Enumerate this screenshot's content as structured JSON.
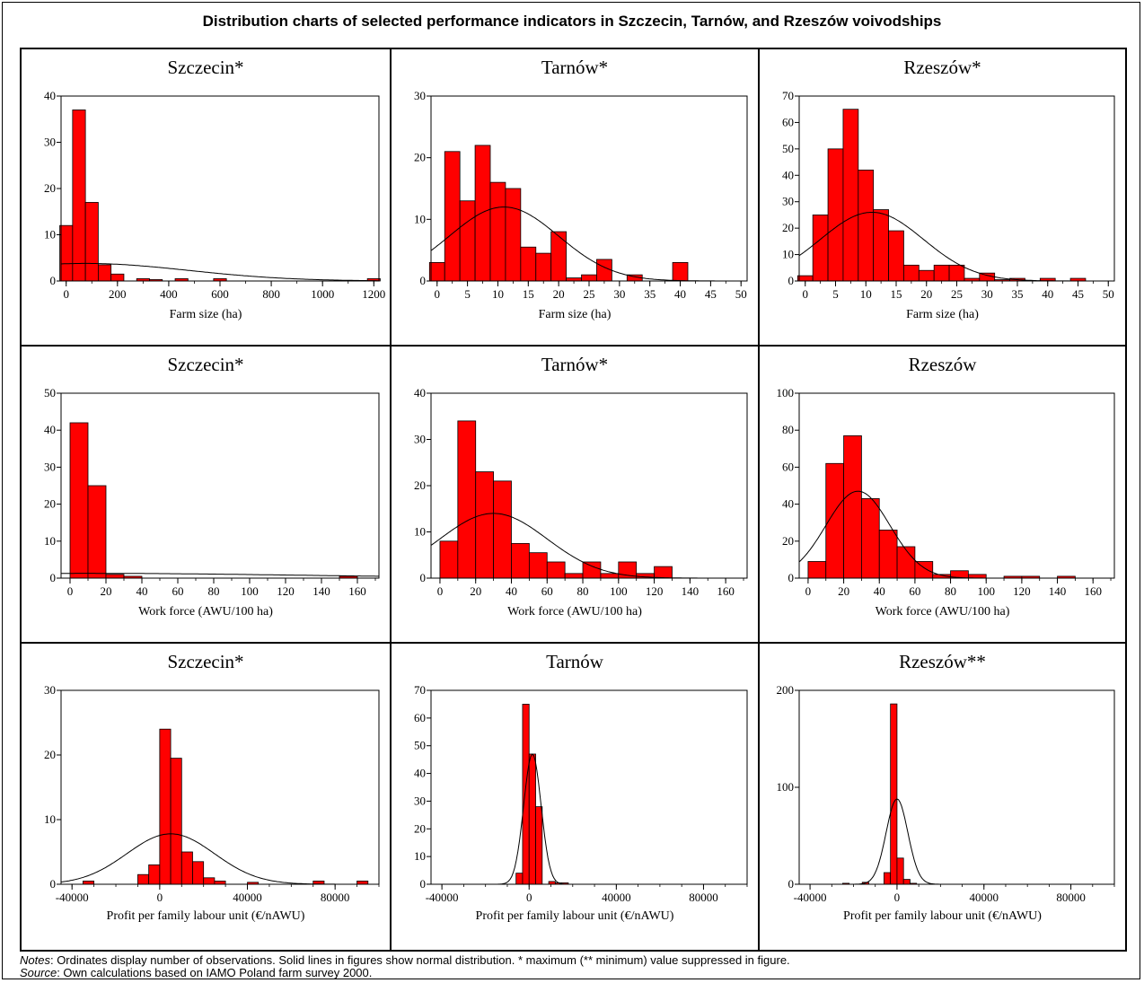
{
  "figure": {
    "title": "Distribution charts of selected performance indicators in Szczecin, Tarnów, and Rzeszów voivodships",
    "notes_label": "Notes",
    "notes_text": ": Ordinates display number of observations. Solid lines in figures show normal distribution. * maximum (** minimum) value suppressed in figure.",
    "source_label": "Source",
    "source_text": ": Own calculations based on IAMO Poland farm survey 2000."
  },
  "colors": {
    "bar_fill": "#ff0000",
    "bar_stroke": "#000000",
    "curve": "#000000"
  },
  "chart_data": [
    {
      "type": "bar",
      "title": "Szczecin*",
      "xlabel": "Farm size (ha)",
      "ylabel": "",
      "xlim": [
        -20,
        1220
      ],
      "ylim": [
        0,
        40
      ],
      "xticks": [
        0,
        200,
        400,
        600,
        800,
        1000,
        1200
      ],
      "yticks": [
        0,
        10,
        20,
        30,
        40
      ],
      "bin_width": 50,
      "bins": [
        [
          -25,
          12
        ],
        [
          25,
          37
        ],
        [
          75,
          17
        ],
        [
          125,
          3.5
        ],
        [
          175,
          1.5
        ],
        [
          275,
          0.5
        ],
        [
          325,
          0.3
        ],
        [
          425,
          0.5
        ],
        [
          575,
          0.5
        ],
        [
          1175,
          0.5
        ]
      ],
      "normal_curve": {
        "mean": 75,
        "sd": 400,
        "peak": 3.8
      }
    },
    {
      "type": "bar",
      "title": "Tarnów*",
      "xlabel": "Farm size (ha)",
      "ylabel": "",
      "xlim": [
        -1,
        51
      ],
      "ylim": [
        0,
        30
      ],
      "xticks": [
        0,
        5,
        10,
        15,
        20,
        25,
        30,
        35,
        40,
        45,
        50
      ],
      "yticks": [
        0,
        10,
        20,
        30
      ],
      "bin_width": 2.5,
      "bins": [
        [
          -1.25,
          3
        ],
        [
          1.25,
          21
        ],
        [
          3.75,
          13
        ],
        [
          6.25,
          22
        ],
        [
          8.75,
          16
        ],
        [
          11.25,
          15
        ],
        [
          13.75,
          5.5
        ],
        [
          16.25,
          4.5
        ],
        [
          18.75,
          8
        ],
        [
          21.25,
          0.5
        ],
        [
          23.75,
          1
        ],
        [
          26.25,
          3.5
        ],
        [
          31.25,
          1
        ],
        [
          38.75,
          3
        ]
      ],
      "normal_curve": {
        "mean": 11,
        "sd": 9,
        "peak": 12
      }
    },
    {
      "type": "bar",
      "title": "Rzeszów*",
      "xlabel": "Farm size (ha)",
      "ylabel": "",
      "xlim": [
        -1,
        51
      ],
      "ylim": [
        0,
        70
      ],
      "xticks": [
        0,
        5,
        10,
        15,
        20,
        25,
        30,
        35,
        40,
        45,
        50
      ],
      "yticks": [
        0,
        10,
        20,
        30,
        40,
        50,
        60,
        70
      ],
      "bin_width": 2.5,
      "bins": [
        [
          -1.25,
          2
        ],
        [
          1.25,
          25
        ],
        [
          3.75,
          50
        ],
        [
          6.25,
          65
        ],
        [
          8.75,
          42
        ],
        [
          11.25,
          27
        ],
        [
          13.75,
          19
        ],
        [
          16.25,
          6
        ],
        [
          18.75,
          4
        ],
        [
          21.25,
          6
        ],
        [
          23.75,
          6
        ],
        [
          26.25,
          1
        ],
        [
          28.75,
          3
        ],
        [
          31.25,
          0.5
        ],
        [
          33.75,
          1
        ],
        [
          38.75,
          1
        ],
        [
          43.75,
          1
        ]
      ],
      "normal_curve": {
        "mean": 11,
        "sd": 8.5,
        "peak": 26
      }
    },
    {
      "type": "bar",
      "title": "Szczecin*",
      "xlabel": "Work force (AWU/100 ha)",
      "ylabel": "",
      "xlim": [
        -5,
        172
      ],
      "ylim": [
        0,
        50
      ],
      "xticks": [
        0,
        20,
        40,
        60,
        80,
        100,
        120,
        140,
        160
      ],
      "yticks": [
        0,
        10,
        20,
        30,
        40,
        50
      ],
      "bin_width": 10,
      "bins": [
        [
          0,
          42
        ],
        [
          10,
          25
        ],
        [
          20,
          1
        ],
        [
          30,
          0.5
        ],
        [
          150,
          0.5
        ]
      ],
      "normal_curve": {
        "mean": 8,
        "sd": 120,
        "peak": 1.3
      }
    },
    {
      "type": "bar",
      "title": "Tarnów*",
      "xlabel": "Work force (AWU/100 ha)",
      "ylabel": "",
      "xlim": [
        -5,
        172
      ],
      "ylim": [
        0,
        40
      ],
      "xticks": [
        0,
        20,
        40,
        60,
        80,
        100,
        120,
        140,
        160
      ],
      "yticks": [
        0,
        10,
        20,
        30,
        40
      ],
      "bin_width": 10,
      "bins": [
        [
          0,
          8
        ],
        [
          10,
          34
        ],
        [
          20,
          23
        ],
        [
          30,
          21
        ],
        [
          40,
          7.5
        ],
        [
          50,
          5.5
        ],
        [
          60,
          3.5
        ],
        [
          70,
          1
        ],
        [
          80,
          3.5
        ],
        [
          90,
          1
        ],
        [
          100,
          3.5
        ],
        [
          110,
          1
        ],
        [
          120,
          2.5
        ]
      ],
      "normal_curve": {
        "mean": 30,
        "sd": 30,
        "peak": 14
      }
    },
    {
      "type": "bar",
      "title": "Rzeszów",
      "xlabel": "Work force (AWU/100 ha)",
      "ylabel": "",
      "xlim": [
        -5,
        172
      ],
      "ylim": [
        0,
        100
      ],
      "xticks": [
        0,
        20,
        40,
        60,
        80,
        100,
        120,
        140,
        160
      ],
      "yticks": [
        0,
        20,
        40,
        60,
        80,
        100
      ],
      "bin_width": 10,
      "bins": [
        [
          0,
          9
        ],
        [
          10,
          62
        ],
        [
          20,
          77
        ],
        [
          30,
          43
        ],
        [
          40,
          26
        ],
        [
          50,
          17
        ],
        [
          60,
          9
        ],
        [
          70,
          2
        ],
        [
          80,
          4
        ],
        [
          90,
          2
        ],
        [
          110,
          1
        ],
        [
          120,
          1
        ],
        [
          140,
          1
        ]
      ],
      "normal_curve": {
        "mean": 28,
        "sd": 18,
        "peak": 47
      }
    },
    {
      "type": "bar",
      "title": "Szczecin*",
      "xlabel": "Profit per family labour unit (€/nAWU)",
      "ylabel": "",
      "xlim": [
        -45000,
        100000
      ],
      "ylim": [
        0,
        30
      ],
      "xticks": [
        -40000,
        0,
        40000,
        80000
      ],
      "yticks": [
        0,
        10,
        20,
        30
      ],
      "bin_width": 5000,
      "bins": [
        [
          -35000,
          0.5
        ],
        [
          -10000,
          1.5
        ],
        [
          -5000,
          3
        ],
        [
          0,
          24
        ],
        [
          5000,
          19.5
        ],
        [
          10000,
          5
        ],
        [
          15000,
          3.5
        ],
        [
          20000,
          1
        ],
        [
          25000,
          0.5
        ],
        [
          40000,
          0.3
        ],
        [
          70000,
          0.5
        ],
        [
          90000,
          0.5
        ]
      ],
      "normal_curve": {
        "mean": 5000,
        "sd": 20000,
        "peak": 7.8
      }
    },
    {
      "type": "bar",
      "title": "Tarnów",
      "xlabel": "Profit per family labour unit (€/nAWU)",
      "ylabel": "",
      "xlim": [
        -45000,
        100000
      ],
      "ylim": [
        0,
        70
      ],
      "xticks": [
        -40000,
        0,
        40000,
        80000
      ],
      "yticks": [
        0,
        10,
        20,
        30,
        40,
        50,
        60,
        70
      ],
      "bin_width": 3000,
      "bins": [
        [
          -6000,
          4
        ],
        [
          -3000,
          65
        ],
        [
          0,
          47
        ],
        [
          3000,
          28
        ],
        [
          9000,
          1
        ],
        [
          12000,
          0.5
        ],
        [
          15000,
          0.5
        ]
      ],
      "normal_curve": {
        "mean": 1500,
        "sd": 4000,
        "peak": 47
      }
    },
    {
      "type": "bar",
      "title": "Rzeszów**",
      "xlabel": "Profit per family labour unit (€/nAWU)",
      "ylabel": "",
      "xlim": [
        -45000,
        100000
      ],
      "ylim": [
        0,
        200
      ],
      "xticks": [
        -40000,
        0,
        40000,
        80000
      ],
      "yticks": [
        0,
        100,
        200
      ],
      "bin_width": 3000,
      "bins": [
        [
          -25000,
          1
        ],
        [
          -16000,
          2
        ],
        [
          -6000,
          12
        ],
        [
          -3000,
          186
        ],
        [
          0,
          27
        ],
        [
          3000,
          5
        ],
        [
          6000,
          1
        ]
      ],
      "normal_curve": {
        "mean": 0,
        "sd": 5000,
        "peak": 88
      }
    }
  ]
}
